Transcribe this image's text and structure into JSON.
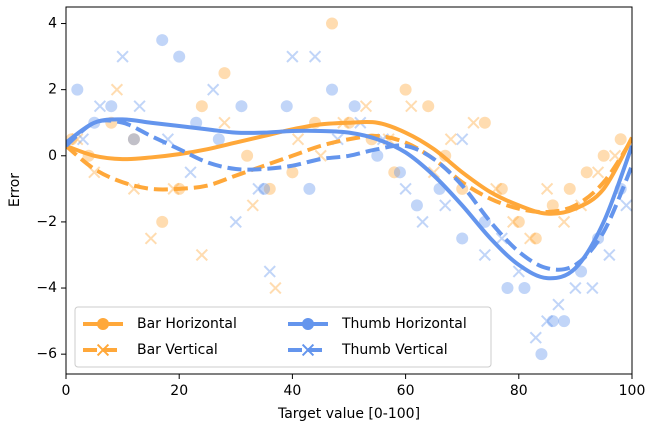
{
  "chart_data": {
    "type": "scatter-fit",
    "x_label": "Target value [0-100]",
    "y_label": "Error",
    "xlim": [
      0,
      100
    ],
    "ylim": [
      -6.6,
      4.5
    ],
    "xticks": [
      0,
      20,
      40,
      60,
      80,
      100
    ],
    "yticks": [
      {
        "value": -6,
        "label": "−6"
      },
      {
        "value": -4,
        "label": "−4"
      },
      {
        "value": -2,
        "label": "−2"
      },
      0,
      2,
      4
    ],
    "legend": "lower left",
    "series": [
      {
        "name": "Bar Horizontal",
        "color": "#ffa83a",
        "linestyle": "solid",
        "marker": "o",
        "x": [
          0,
          5,
          10,
          15,
          20,
          25,
          30,
          35,
          40,
          45,
          50,
          55,
          60,
          65,
          70,
          75,
          80,
          85,
          90,
          95,
          100
        ],
        "values": [
          0.3,
          0.0,
          -0.1,
          -0.05,
          0.05,
          0.2,
          0.4,
          0.6,
          0.8,
          0.95,
          1.0,
          1.0,
          0.7,
          0.2,
          -0.5,
          -1.1,
          -1.5,
          -1.75,
          -1.6,
          -1.0,
          0.55
        ],
        "points": {
          "x": [
            1,
            4,
            8,
            12,
            17,
            20,
            24,
            28,
            32,
            36,
            40,
            44,
            47,
            50,
            54,
            58,
            60,
            64,
            67,
            70,
            74,
            77,
            80,
            83,
            86,
            89,
            92,
            95,
            98
          ],
          "values": [
            0.5,
            0,
            1,
            0.5,
            -2,
            -1,
            1.5,
            2.5,
            0,
            -1,
            -0.5,
            1,
            4,
            1,
            0.5,
            -0.5,
            2,
            1.5,
            0,
            -1,
            1,
            -1,
            -2,
            -2.5,
            -1.5,
            -1,
            -0.5,
            0,
            0.5
          ]
        }
      },
      {
        "name": "Bar Vertical",
        "color": "#ffa83a",
        "linestyle": "dashed",
        "marker": "x",
        "x": [
          0,
          5,
          10,
          15,
          20,
          25,
          30,
          35,
          40,
          45,
          50,
          55,
          60,
          65,
          70,
          75,
          80,
          85,
          90,
          95,
          100
        ],
        "values": [
          0.3,
          -0.4,
          -0.8,
          -1.0,
          -1.0,
          -0.9,
          -0.6,
          -0.3,
          0.0,
          0.3,
          0.5,
          0.6,
          0.4,
          -0.1,
          -0.8,
          -1.3,
          -1.6,
          -1.7,
          -1.5,
          -0.8,
          0.5
        ],
        "points": {
          "x": [
            2,
            5,
            9,
            12,
            15,
            19,
            24,
            28,
            33,
            37,
            41,
            45,
            49,
            53,
            57,
            61,
            65,
            68,
            72,
            76,
            79,
            82,
            85,
            88,
            91,
            94,
            97
          ],
          "values": [
            0.5,
            -0.5,
            2,
            -1,
            -2.5,
            -1,
            -3,
            1,
            -1.5,
            -4,
            0.5,
            0,
            1,
            1.5,
            0.5,
            1.5,
            -0.5,
            0.5,
            1,
            -1,
            -2,
            -2.5,
            -1,
            -2,
            -1.5,
            -0.5,
            0
          ]
        }
      },
      {
        "name": "Thumb Horizontal",
        "color": "#6495ed",
        "linestyle": "solid",
        "marker": "o",
        "x": [
          0,
          5,
          10,
          15,
          20,
          25,
          30,
          35,
          40,
          45,
          50,
          55,
          60,
          65,
          70,
          75,
          80,
          85,
          90,
          95,
          100
        ],
        "values": [
          0.4,
          1.0,
          1.1,
          1.0,
          0.9,
          0.8,
          0.7,
          0.7,
          0.75,
          0.75,
          0.7,
          0.5,
          0.1,
          -0.6,
          -1.5,
          -2.5,
          -3.3,
          -3.7,
          -3.4,
          -2.0,
          0.3
        ],
        "points": {
          "x": [
            2,
            5,
            8,
            12,
            17,
            20,
            23,
            27,
            31,
            35,
            39,
            43,
            47,
            51,
            55,
            59,
            62,
            66,
            70,
            74,
            78,
            81,
            84,
            86,
            88,
            91,
            94,
            98
          ],
          "values": [
            2,
            1,
            1.5,
            0.5,
            3.5,
            3,
            1,
            0.5,
            1.5,
            -1,
            1.5,
            -1,
            2,
            1.5,
            0,
            -0.5,
            -1.5,
            -1,
            -2.5,
            -2,
            -4,
            -4,
            -6,
            -5,
            -5,
            -3.5,
            -2.5,
            -1
          ]
        }
      },
      {
        "name": "Thumb Vertical",
        "color": "#6495ed",
        "linestyle": "dashed",
        "marker": "x",
        "x": [
          0,
          5,
          10,
          15,
          20,
          25,
          30,
          35,
          40,
          45,
          50,
          55,
          60,
          65,
          70,
          75,
          80,
          85,
          90,
          95,
          100
        ],
        "values": [
          0.3,
          1.0,
          1.0,
          0.6,
          0.2,
          -0.2,
          -0.4,
          -0.4,
          -0.3,
          -0.1,
          0.0,
          0.2,
          0.3,
          -0.1,
          -0.9,
          -2.0,
          -2.9,
          -3.4,
          -3.3,
          -2.3,
          -0.3
        ],
        "points": {
          "x": [
            3,
            6,
            10,
            13,
            18,
            22,
            26,
            30,
            34,
            36,
            40,
            44,
            48,
            52,
            56,
            60,
            63,
            67,
            70,
            74,
            77,
            80,
            83,
            85,
            87,
            90,
            93,
            96,
            99
          ],
          "values": [
            0.5,
            1.5,
            3,
            1.5,
            0.5,
            -0.5,
            2,
            -2,
            -1,
            -3.5,
            3,
            3,
            0.5,
            1,
            0.5,
            -1,
            -2,
            -1.5,
            0.5,
            -3,
            -2.5,
            -3.5,
            -5.5,
            -5,
            -4.5,
            -4,
            -4,
            -3,
            -1.5
          ]
        }
      }
    ]
  }
}
